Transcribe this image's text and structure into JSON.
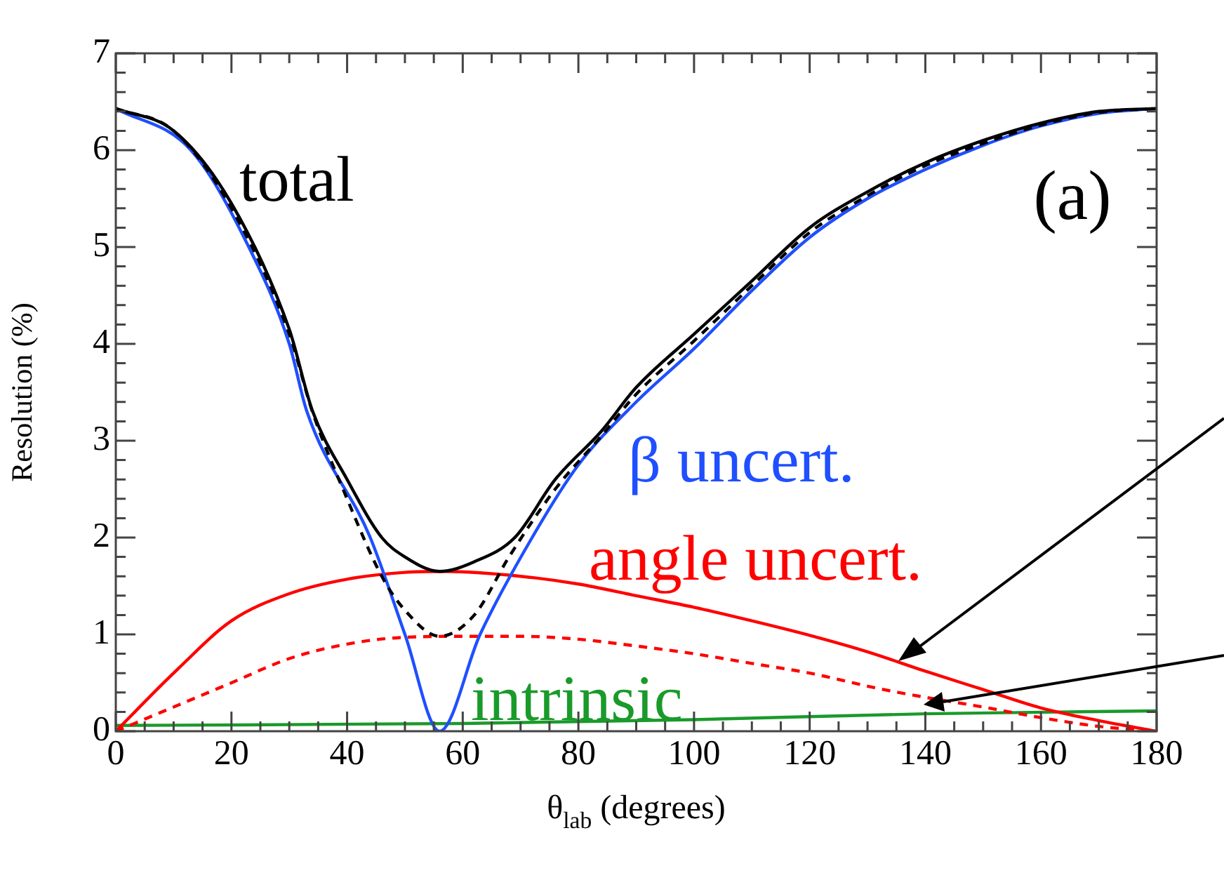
{
  "chart_data": {
    "type": "line",
    "xlabel": "θ$_{lab}$ (degrees)",
    "ylabel": "Resolution (%)",
    "xlim": [
      0,
      180
    ],
    "ylim": [
      0,
      7
    ],
    "xticks": [
      0,
      20,
      40,
      60,
      80,
      100,
      120,
      140,
      160,
      180
    ],
    "yticks": [
      0,
      1,
      2,
      3,
      4,
      5,
      6,
      7
    ],
    "grid": false,
    "legend": false,
    "marker": "none",
    "annotations": [
      "(a)"
    ],
    "series": [
      {
        "name": "total",
        "color": "#000000",
        "line_style": "solid",
        "x": [
          0,
          10,
          20,
          30,
          34,
          40,
          46,
          50,
          56,
          62,
          69,
          76,
          84,
          90,
          100,
          110,
          120,
          130,
          140,
          150,
          160,
          170,
          180
        ],
        "values": [
          6.43,
          6.2,
          5.45,
          4.15,
          3.31,
          2.6,
          2.0,
          1.8,
          1.65,
          1.75,
          2.0,
          2.6,
          3.1,
          3.55,
          4.1,
          4.65,
          5.2,
          5.57,
          5.87,
          6.1,
          6.28,
          6.4,
          6.43
        ]
      },
      {
        "color": "#000000",
        "line_style": "dashed",
        "x": [
          0,
          10,
          20,
          30,
          34,
          40,
          46,
          50,
          56,
          62,
          68,
          76,
          84,
          90,
          100,
          110,
          120,
          130,
          140,
          150,
          160,
          170,
          180
        ],
        "values": [
          6.43,
          6.2,
          5.4,
          4.1,
          3.3,
          2.4,
          1.6,
          1.25,
          0.98,
          1.2,
          1.8,
          2.5,
          3.05,
          3.48,
          4.03,
          4.6,
          5.15,
          5.53,
          5.84,
          6.07,
          6.26,
          6.39,
          6.43
        ]
      },
      {
        "name": "β uncert.",
        "color": "#1f4fff",
        "line_style": "solid",
        "x": [
          0,
          13,
          23,
          30,
          33,
          44,
          50,
          56,
          63,
          72,
          80,
          90,
          100,
          110,
          120,
          130,
          140,
          150,
          160,
          170,
          180
        ],
        "values": [
          6.43,
          6.0,
          5.0,
          4.0,
          3.31,
          2.0,
          1.0,
          0,
          1.0,
          2.0,
          2.75,
          3.4,
          3.95,
          4.55,
          5.1,
          5.5,
          5.8,
          6.05,
          6.25,
          6.38,
          6.43
        ]
      },
      {
        "name": "angle uncert.",
        "color": "#ff0000",
        "line_style": "solid",
        "x": [
          0,
          10,
          20,
          30,
          40,
          50,
          57,
          70,
          80,
          90,
          100,
          110,
          120,
          130,
          140,
          150,
          160,
          170,
          180
        ],
        "values": [
          0,
          0.6,
          1.14,
          1.42,
          1.57,
          1.64,
          1.65,
          1.6,
          1.52,
          1.4,
          1.28,
          1.14,
          0.99,
          0.82,
          0.62,
          0.43,
          0.24,
          0.11,
          0
        ]
      },
      {
        "color": "#ff0000",
        "line_style": "dashed",
        "x": [
          0,
          10,
          20,
          30,
          40,
          50,
          60,
          70,
          80,
          90,
          100,
          110,
          120,
          132,
          140,
          150,
          160,
          170,
          180
        ],
        "values": [
          0,
          0.25,
          0.5,
          0.75,
          0.9,
          0.97,
          0.98,
          0.98,
          0.95,
          0.88,
          0.8,
          0.7,
          0.6,
          0.44,
          0.35,
          0.25,
          0.14,
          0.05,
          0
        ]
      },
      {
        "name": "intrinsic",
        "color": "#1a9a2a",
        "line_style": "solid",
        "x": [
          0,
          60,
          100,
          140,
          180
        ],
        "values": [
          0.06,
          0.08,
          0.12,
          0.18,
          0.21
        ]
      }
    ]
  }
}
